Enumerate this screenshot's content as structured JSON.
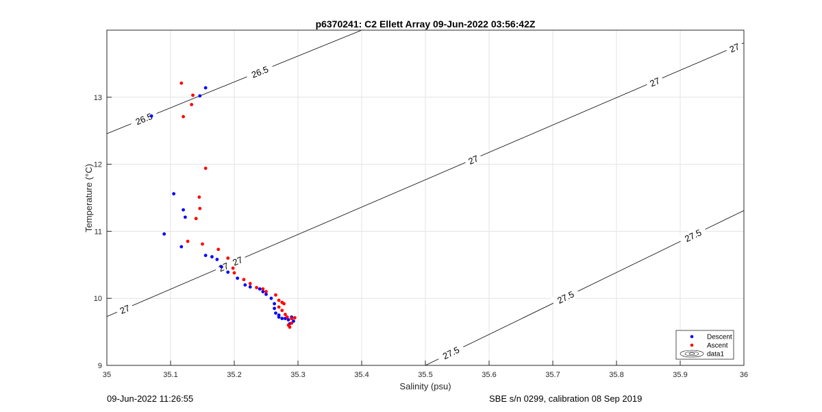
{
  "chart_data": {
    "type": "scatter",
    "title": "p6370241: C2 Ellett Array 09-Jun-2022 03:56:42Z",
    "xlabel": "Salinity (psu)",
    "ylabel": "Temperature (°C)",
    "xlim": [
      35,
      36
    ],
    "ylim": [
      9,
      14
    ],
    "xticks": [
      "35",
      "35.1",
      "35.2",
      "35.3",
      "35.4",
      "35.5",
      "35.6",
      "35.7",
      "35.8",
      "35.9",
      "36"
    ],
    "yticks": [
      "9",
      "10",
      "11",
      "12",
      "13"
    ],
    "grid": true,
    "legend_position": "bottom-right",
    "legend": [
      "Descent",
      "Ascent",
      "data1"
    ],
    "series": [
      {
        "name": "Descent",
        "color": "#0000ff",
        "x": [
          35.07,
          35.146,
          35.155,
          35.105,
          35.12,
          35.123,
          35.09,
          35.117,
          35.155,
          35.165,
          35.173,
          35.18,
          35.19,
          35.205,
          35.217,
          35.225,
          35.24,
          35.245,
          35.25,
          35.258,
          35.263,
          35.263,
          35.265,
          35.27,
          35.27,
          35.275,
          35.28,
          35.285,
          35.29,
          35.293,
          35.287
        ],
        "y": [
          12.72,
          13.02,
          13.14,
          11.56,
          11.32,
          11.21,
          10.96,
          10.77,
          10.64,
          10.62,
          10.58,
          10.47,
          10.39,
          10.3,
          10.2,
          10.17,
          10.14,
          10.1,
          10.06,
          10.0,
          9.92,
          9.85,
          9.78,
          9.75,
          9.72,
          9.7,
          9.7,
          9.68,
          9.72,
          9.66,
          9.62
        ],
        "style": "dots"
      },
      {
        "name": "Ascent",
        "color": "#ff0000",
        "x": [
          35.117,
          35.135,
          35.133,
          35.12,
          35.155,
          35.145,
          35.146,
          35.14,
          35.127,
          35.15,
          35.175,
          35.19,
          35.198,
          35.2,
          35.215,
          35.225,
          35.235,
          35.245,
          35.25,
          35.265,
          35.27,
          35.275,
          35.278,
          35.27,
          35.275,
          35.28,
          35.283,
          35.29,
          35.295,
          35.285,
          35.29,
          35.287
        ],
        "y": [
          13.21,
          13.03,
          12.89,
          12.71,
          11.94,
          11.51,
          11.34,
          11.19,
          10.85,
          10.81,
          10.73,
          10.6,
          10.45,
          10.38,
          10.28,
          10.22,
          10.16,
          10.14,
          10.1,
          10.05,
          9.97,
          9.94,
          9.92,
          9.87,
          9.82,
          9.76,
          9.72,
          9.7,
          9.71,
          9.6,
          9.63,
          9.57
        ],
        "style": "dots"
      }
    ],
    "contours": [
      {
        "level": "26.5",
        "x": [
          35.0,
          35.4
        ],
        "y": [
          12.456,
          14.0
        ],
        "labels": [
          {
            "x": 35.058,
            "y": 12.68
          },
          {
            "x": 35.24,
            "y": 13.38
          }
        ]
      },
      {
        "level": "27",
        "x": [
          35.0,
          36.0
        ],
        "y": [
          9.728,
          13.81
        ],
        "labels": [
          {
            "x": 35.028,
            "y": 9.84
          },
          {
            "x": 35.205,
            "y": 10.56
          },
          {
            "x": 35.183,
            "y": 10.47
          },
          {
            "x": 35.575,
            "y": 12.07
          },
          {
            "x": 35.86,
            "y": 13.23
          },
          {
            "x": 35.985,
            "y": 13.74
          }
        ]
      },
      {
        "level": "27.5",
        "x": [
          35.5,
          36.0
        ],
        "y": [
          9.0,
          11.31
        ],
        "labels": [
          {
            "x": 35.54,
            "y": 9.19
          },
          {
            "x": 35.72,
            "y": 10.02
          },
          {
            "x": 35.92,
            "y": 10.94
          }
        ]
      }
    ]
  },
  "footer": {
    "timestamp": "09-Jun-2022 11:26:55",
    "calibration": "SBE s/n 0299, calibration 08 Sep 2019"
  }
}
